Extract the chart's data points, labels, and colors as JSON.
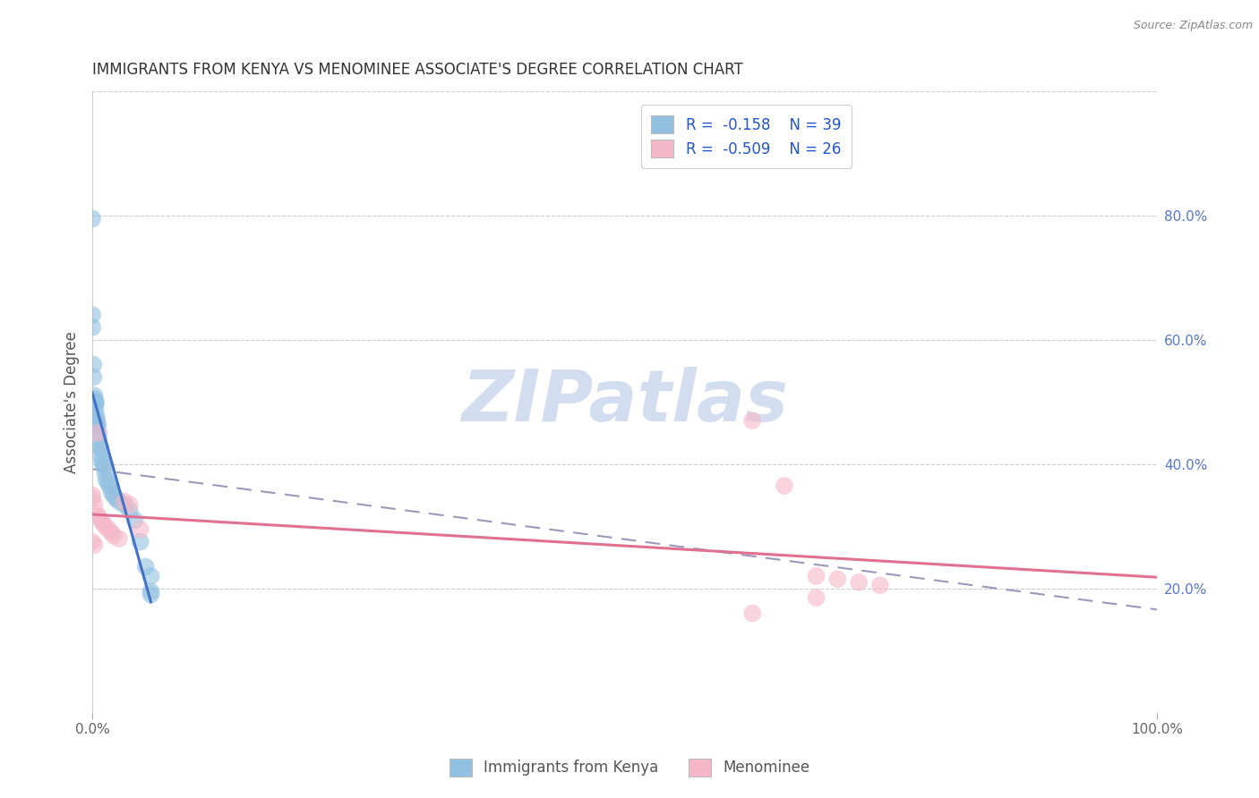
{
  "title": "IMMIGRANTS FROM KENYA VS MENOMINEE ASSOCIATE'S DEGREE CORRELATION CHART",
  "source": "Source: ZipAtlas.com",
  "ylabel": "Associate's Degree",
  "right_yticks": [
    20.0,
    40.0,
    60.0,
    80.0
  ],
  "legend_blue_r": "R =  -0.158",
  "legend_blue_n": "N = 39",
  "legend_pink_r": "R =  -0.509",
  "legend_pink_n": "N = 26",
  "blue_color": "#92c0e0",
  "pink_color": "#f5b8c8",
  "blue_line_color": "#4472c4",
  "pink_line_color": "#e07090",
  "dash_line_color": "#9999bb",
  "watermark": "ZIPatlas",
  "watermark_color": "#ccd8ee",
  "blue_points": [
    [
      0.0,
      79.5
    ],
    [
      0.0,
      64.0
    ],
    [
      0.0,
      62.0
    ],
    [
      0.1,
      56.0
    ],
    [
      0.1,
      54.0
    ],
    [
      0.2,
      51.0
    ],
    [
      0.2,
      50.5
    ],
    [
      0.3,
      50.0
    ],
    [
      0.3,
      50.0
    ],
    [
      0.3,
      49.5
    ],
    [
      0.3,
      48.5
    ],
    [
      0.4,
      47.5
    ],
    [
      0.4,
      47.0
    ],
    [
      0.5,
      46.5
    ],
    [
      0.5,
      46.0
    ],
    [
      0.6,
      45.0
    ],
    [
      0.6,
      44.0
    ],
    [
      0.7,
      43.0
    ],
    [
      0.8,
      42.5
    ],
    [
      0.8,
      41.5
    ],
    [
      0.9,
      40.5
    ],
    [
      1.0,
      40.0
    ],
    [
      1.1,
      39.5
    ],
    [
      1.2,
      38.5
    ],
    [
      1.3,
      37.5
    ],
    [
      1.5,
      37.0
    ],
    [
      1.6,
      36.5
    ],
    [
      1.8,
      35.5
    ],
    [
      2.0,
      35.0
    ],
    [
      2.2,
      34.5
    ],
    [
      2.5,
      34.0
    ],
    [
      3.0,
      33.5
    ],
    [
      3.5,
      32.5
    ],
    [
      4.0,
      31.0
    ],
    [
      4.5,
      27.5
    ],
    [
      5.0,
      23.5
    ],
    [
      5.5,
      22.0
    ],
    [
      5.5,
      19.5
    ],
    [
      5.5,
      19.0
    ]
  ],
  "pink_points": [
    [
      0.0,
      35.0
    ],
    [
      0.0,
      34.5
    ],
    [
      0.2,
      33.5
    ],
    [
      0.4,
      32.0
    ],
    [
      0.6,
      31.5
    ],
    [
      0.8,
      31.0
    ],
    [
      1.0,
      30.5
    ],
    [
      1.2,
      30.0
    ],
    [
      1.5,
      29.5
    ],
    [
      1.8,
      29.0
    ],
    [
      2.0,
      28.5
    ],
    [
      2.5,
      28.0
    ],
    [
      3.0,
      34.0
    ],
    [
      3.5,
      33.5
    ],
    [
      0.5,
      45.0
    ],
    [
      4.5,
      29.5
    ],
    [
      0.0,
      27.5
    ],
    [
      0.2,
      27.0
    ],
    [
      62.0,
      47.0
    ],
    [
      65.0,
      36.5
    ],
    [
      68.0,
      22.0
    ],
    [
      70.0,
      21.5
    ],
    [
      72.0,
      21.0
    ],
    [
      74.0,
      20.5
    ],
    [
      62.0,
      16.0
    ],
    [
      68.0,
      18.5
    ]
  ],
  "blue_line_xrange": [
    0.0,
    5.5
  ],
  "pink_line_xrange": [
    0.0,
    100.0
  ],
  "dash_line_xrange": [
    0.0,
    100.0
  ],
  "xlim": [
    0,
    100
  ],
  "ylim": [
    0,
    100
  ],
  "grid_color": "#cccccc",
  "grid_style": "--"
}
